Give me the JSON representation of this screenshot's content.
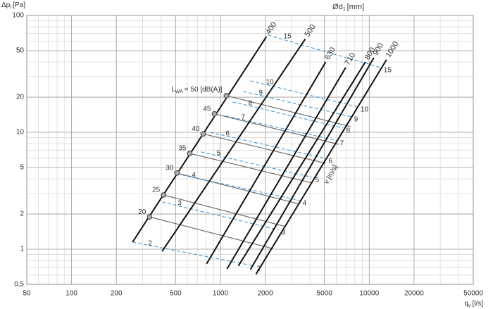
{
  "chart_data": {
    "type": "nomogram",
    "x_label": {
      "main": "q",
      "sub": "v",
      "unit": "[l/s]"
    },
    "y_label": {
      "main": "Δp",
      "sub": "t",
      "unit": "[Pa]"
    },
    "d_label": {
      "main": "Ød",
      "sub": "1",
      "unit": "[mm]"
    },
    "v_label": "v [m/s]",
    "lwa_label": {
      "main": "L",
      "sub": "WA",
      "rest": "= 50 [dB(A)]"
    },
    "log_x": true,
    "log_y": true,
    "xlim": [
      50,
      50000
    ],
    "ylim": [
      0.5,
      100
    ],
    "xticks": [
      50,
      100,
      200,
      500,
      1000,
      2000,
      5000,
      10000,
      20000,
      50000
    ],
    "yticks": [
      {
        "value": 0.5,
        "label": "0,5"
      },
      1,
      2,
      5,
      10,
      20,
      50,
      100
    ],
    "xgrid": [
      60,
      70,
      80,
      90,
      300,
      400,
      600,
      700,
      800,
      900,
      3000,
      4000,
      6000,
      7000,
      8000,
      9000,
      30000,
      40000
    ],
    "ygrid": [
      0.6,
      0.7,
      0.8,
      0.9,
      3,
      4,
      6,
      7,
      8,
      9,
      30,
      40,
      60,
      70,
      80,
      90
    ],
    "diameter_color": "#111111",
    "velocity_color": "#3a8fd0",
    "lwa_color": "#6e6e6e",
    "diameters": [
      {
        "name": "400",
        "x": [
          257,
          2040
        ],
        "y": [
          1.15,
          66
        ]
      },
      {
        "name": "500",
        "x": [
          406,
          3720
        ],
        "y": [
          0.96,
          63
        ]
      },
      {
        "name": "630",
        "x": [
          808,
          5100
        ],
        "y": [
          0.75,
          40
        ]
      },
      {
        "name": "710",
        "x": [
          1109,
          6940
        ],
        "y": [
          0.68,
          35.8
        ]
      },
      {
        "name": "800",
        "x": [
          1321,
          9420
        ],
        "y": [
          0.72,
          40
        ]
      },
      {
        "name": "900",
        "x": [
          1590,
          10740
        ],
        "y": [
          0.67,
          43.5
        ]
      },
      {
        "name": "1000",
        "x": [
          1733,
          13060
        ],
        "y": [
          0.61,
          41.8
        ]
      }
    ],
    "velocities": [
      {
        "name": "2",
        "x": [
          257,
          1680
        ],
        "y": [
          1.15,
          0.72
        ]
      },
      {
        "name": "3",
        "x": [
          406,
          2460
        ],
        "y": [
          2.54,
          1.46
        ]
      },
      {
        "name": "4",
        "x": [
          506,
          3410
        ],
        "y": [
          4.42,
          2.61
        ]
      },
      {
        "name": "5",
        "x": [
          741,
          4150
        ],
        "y": [
          6.8,
          4.12
        ]
      },
      {
        "name": "6",
        "x": [
          853,
          5100
        ],
        "y": [
          10,
          5.98
        ]
      },
      {
        "name": "7",
        "x": [
          1084,
          6080
        ],
        "y": [
          13.8,
          8.5
        ]
      },
      {
        "name": "8",
        "x": [
          1210,
          6710
        ],
        "y": [
          18.2,
          10.9
        ]
      },
      {
        "name": "9",
        "x": [
          1426,
          7570
        ],
        "y": [
          22.4,
          13.6
        ]
      },
      {
        "name": "10",
        "x": [
          1590,
          8360
        ],
        "y": [
          27.6,
          16.5
        ]
      },
      {
        "name": "15",
        "x": [
          2090,
          11970
        ],
        "y": [
          67.9,
          35.8
        ]
      }
    ],
    "lwa": [
      {
        "name": "20",
        "x": [
          334,
          2255
        ],
        "y": [
          1.89,
          1.01
        ]
      },
      {
        "name": "25",
        "x": [
          415,
          2742
        ],
        "y": [
          2.91,
          1.56
        ]
      },
      {
        "name": "30",
        "x": [
          511,
          3410
        ],
        "y": [
          4.48,
          2.43
        ]
      },
      {
        "name": "35",
        "x": [
          622,
          4150
        ],
        "y": [
          6.6,
          3.68
        ]
      },
      {
        "name": "40",
        "x": [
          766,
          5100
        ],
        "y": [
          9.7,
          5.43
        ]
      },
      {
        "name": "45",
        "x": [
          912,
          6220
        ],
        "y": [
          14.4,
          7.9
        ]
      },
      {
        "x": [
          1097,
          7480
        ],
        "y": [
          20.6,
          11.2
        ]
      }
    ]
  }
}
